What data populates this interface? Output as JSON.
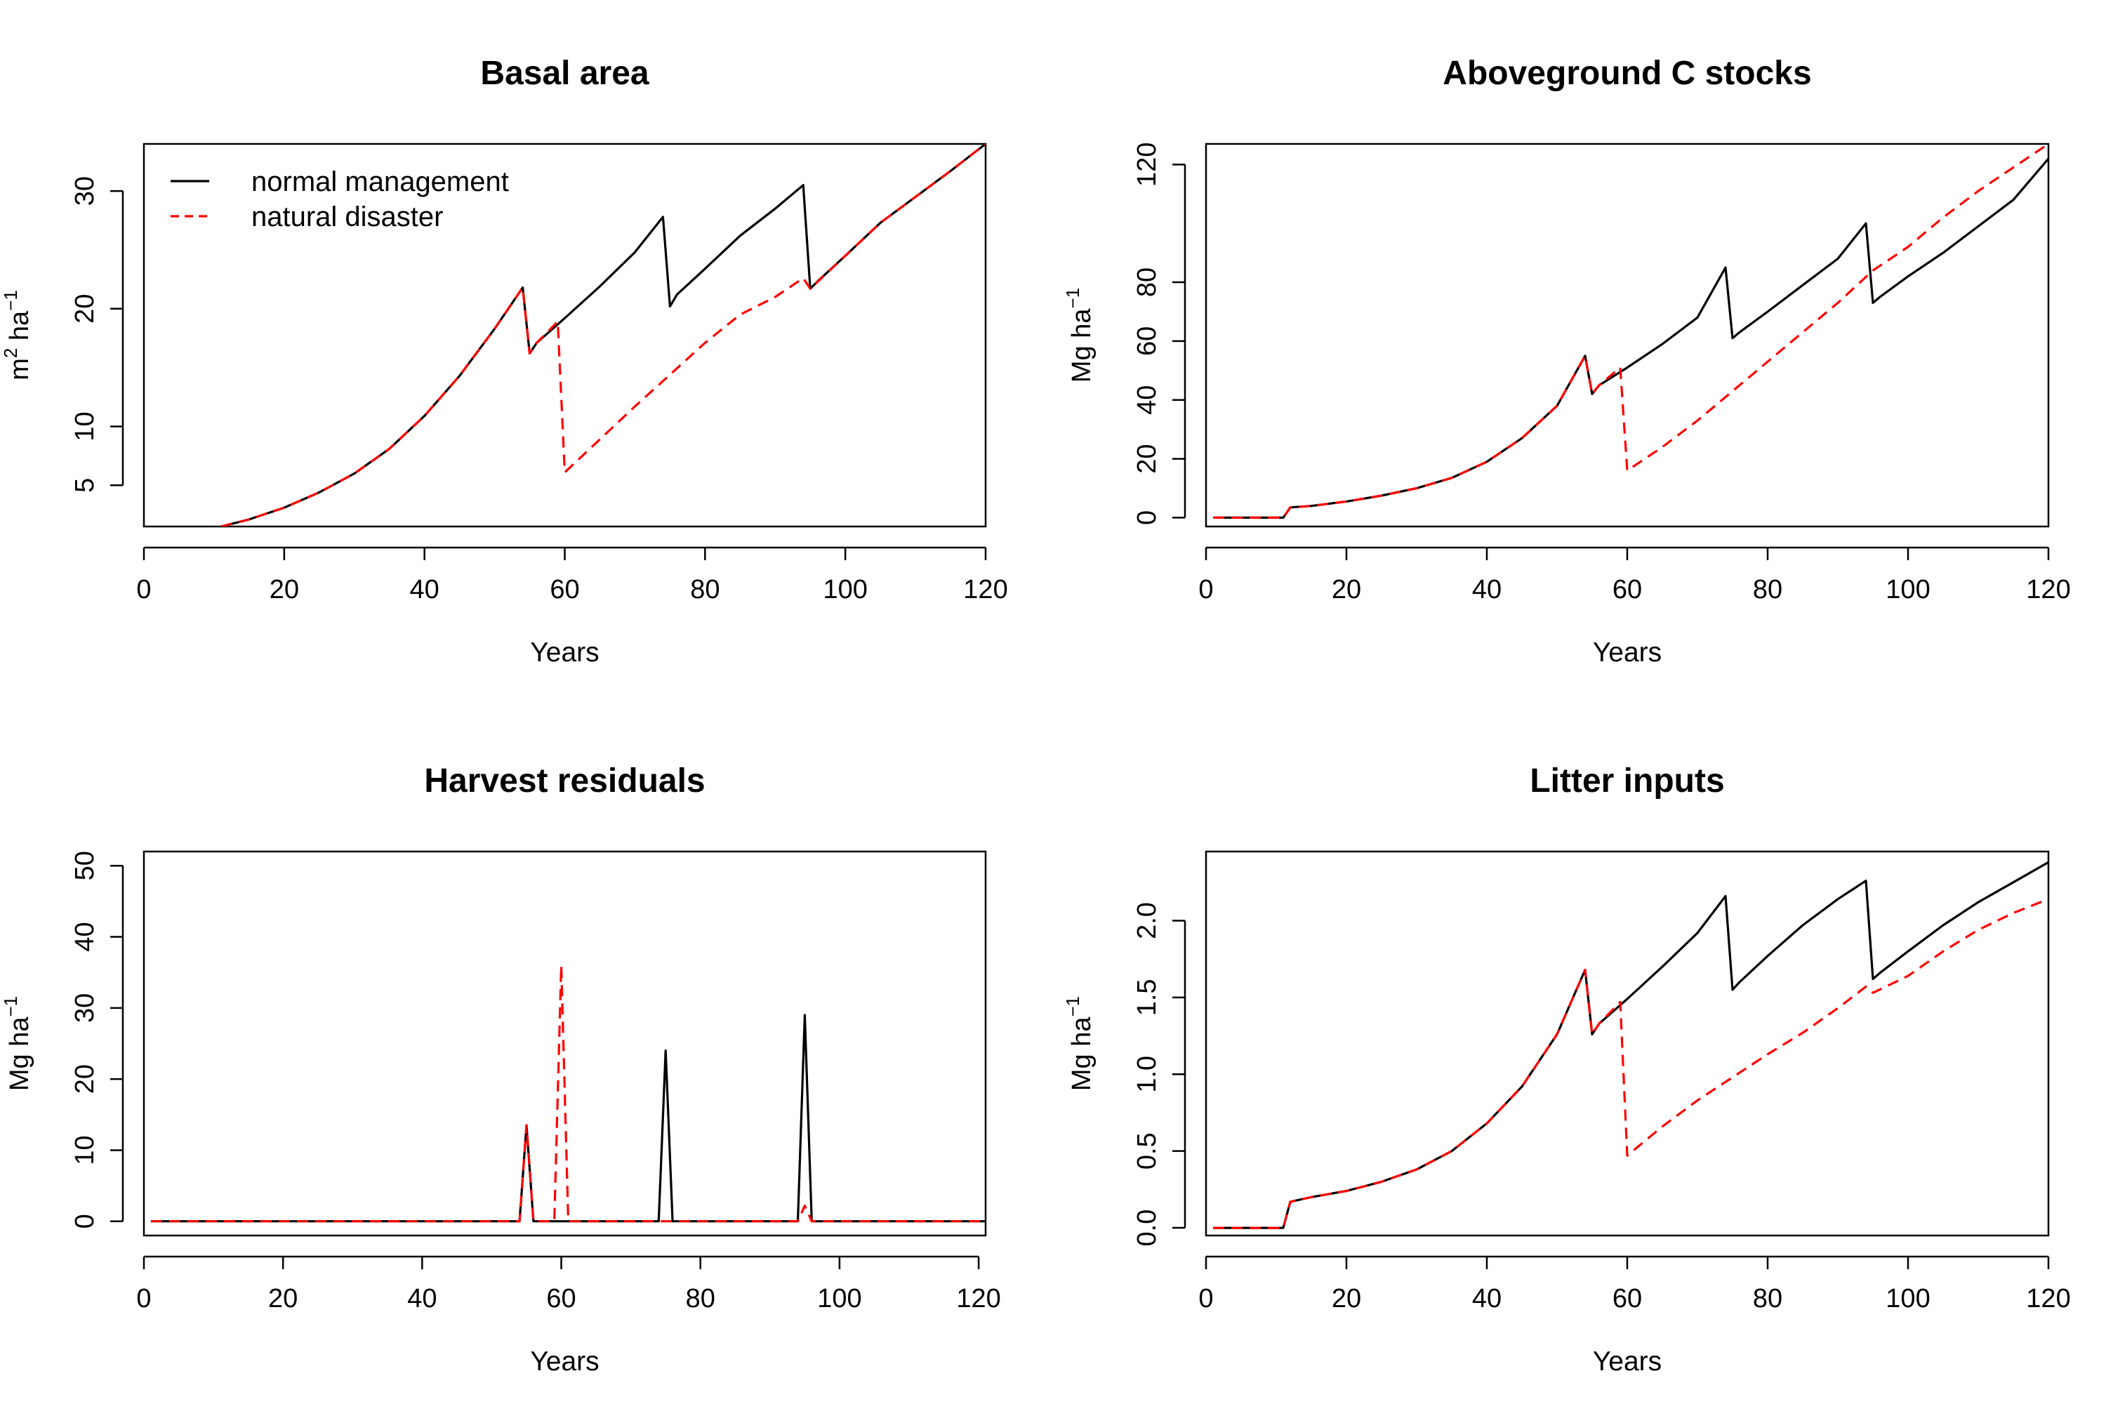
{
  "legend": {
    "entries": [
      "normal management",
      "natural disaster"
    ]
  },
  "series_style": {
    "normal management": {
      "color": "#000000",
      "dash": "solid"
    },
    "natural disaster": {
      "color": "#ff0000",
      "dash": "dashed"
    }
  },
  "chart_data": [
    {
      "type": "line",
      "title": "Basal area",
      "xlabel": "Years",
      "ylabel_main": "m",
      "ylabel_parts": [
        "2",
        " ha",
        "−1"
      ],
      "xlim": [
        0,
        120
      ],
      "ylim": [
        1.5,
        34
      ],
      "xticks": [
        0,
        20,
        40,
        60,
        80,
        100,
        120
      ],
      "yticks": [
        5,
        10,
        20,
        30
      ],
      "grid": false,
      "legend_position": "top-left",
      "series": [
        {
          "name": "normal management",
          "points": [
            [
              11,
              1.5
            ],
            [
              15,
              2.1
            ],
            [
              20,
              3.1
            ],
            [
              25,
              4.4
            ],
            [
              30,
              6.0
            ],
            [
              35,
              8.1
            ],
            [
              40,
              10.9
            ],
            [
              45,
              14.3
            ],
            [
              50,
              18.3
            ],
            [
              54,
              21.8
            ],
            [
              55,
              16.2
            ],
            [
              56,
              17.1
            ],
            [
              60,
              19.2
            ],
            [
              65,
              21.9
            ],
            [
              70,
              24.8
            ],
            [
              74,
              27.8
            ],
            [
              75,
              20.2
            ],
            [
              76,
              21.2
            ],
            [
              80,
              23.4
            ],
            [
              85,
              26.2
            ],
            [
              90,
              28.5
            ],
            [
              94,
              30.5
            ],
            [
              95,
              21.7
            ],
            [
              96,
              22.3
            ],
            [
              100,
              24.5
            ],
            [
              105,
              27.3
            ],
            [
              110,
              29.5
            ],
            [
              115,
              31.7
            ],
            [
              120,
              34.0
            ]
          ]
        },
        {
          "name": "natural disaster",
          "points": [
            [
              11,
              1.5
            ],
            [
              15,
              2.1
            ],
            [
              20,
              3.1
            ],
            [
              25,
              4.4
            ],
            [
              30,
              6.0
            ],
            [
              35,
              8.1
            ],
            [
              40,
              10.9
            ],
            [
              45,
              14.3
            ],
            [
              50,
              18.3
            ],
            [
              54,
              21.8
            ],
            [
              55,
              16.2
            ],
            [
              56,
              17.1
            ],
            [
              59,
              18.9
            ],
            [
              60,
              6.1
            ],
            [
              65,
              8.9
            ],
            [
              70,
              11.7
            ],
            [
              75,
              14.4
            ],
            [
              80,
              17.1
            ],
            [
              85,
              19.5
            ],
            [
              90,
              21.0
            ],
            [
              94,
              22.6
            ],
            [
              95,
              21.7
            ],
            [
              100,
              24.5
            ],
            [
              105,
              27.3
            ],
            [
              110,
              29.5
            ],
            [
              115,
              31.7
            ],
            [
              120,
              34.0
            ]
          ]
        }
      ]
    },
    {
      "type": "line",
      "title": "Aboveground C stocks",
      "xlabel": "Years",
      "ylabel_main": "Mg ha",
      "ylabel_parts": [
        "−1"
      ],
      "xlim": [
        0,
        120
      ],
      "ylim": [
        -3,
        127
      ],
      "xticks": [
        0,
        20,
        40,
        60,
        80,
        100,
        120
      ],
      "yticks": [
        0,
        20,
        40,
        60,
        80,
        120
      ],
      "grid": false,
      "series": [
        {
          "name": "normal management",
          "points": [
            [
              1,
              0
            ],
            [
              11,
              0
            ],
            [
              12,
              3.5
            ],
            [
              15,
              4.0
            ],
            [
              20,
              5.5
            ],
            [
              25,
              7.5
            ],
            [
              30,
              10
            ],
            [
              35,
              13.5
            ],
            [
              40,
              19
            ],
            [
              45,
              27
            ],
            [
              50,
              38
            ],
            [
              54,
              55
            ],
            [
              55,
              42
            ],
            [
              56,
              45
            ],
            [
              60,
              51
            ],
            [
              65,
              59
            ],
            [
              70,
              68
            ],
            [
              74,
              85
            ],
            [
              75,
              61
            ],
            [
              76,
              63
            ],
            [
              80,
              70
            ],
            [
              85,
              79
            ],
            [
              90,
              88
            ],
            [
              94,
              100
            ],
            [
              95,
              73
            ],
            [
              96,
              75
            ],
            [
              100,
              82
            ],
            [
              105,
              90
            ],
            [
              110,
              99
            ],
            [
              115,
              108
            ],
            [
              120,
              122
            ]
          ]
        },
        {
          "name": "natural disaster",
          "points": [
            [
              1,
              0
            ],
            [
              11,
              0
            ],
            [
              12,
              3.5
            ],
            [
              15,
              4.0
            ],
            [
              20,
              5.5
            ],
            [
              25,
              7.5
            ],
            [
              30,
              10
            ],
            [
              35,
              13.5
            ],
            [
              40,
              19
            ],
            [
              45,
              27
            ],
            [
              50,
              38
            ],
            [
              54,
              55
            ],
            [
              55,
              42
            ],
            [
              56,
              45
            ],
            [
              59,
              51
            ],
            [
              60,
              16
            ],
            [
              65,
              24
            ],
            [
              70,
              33
            ],
            [
              75,
              43
            ],
            [
              80,
              53
            ],
            [
              85,
              63
            ],
            [
              90,
              73
            ],
            [
              95,
              84
            ],
            [
              100,
              92
            ],
            [
              105,
              102
            ],
            [
              110,
              111
            ],
            [
              115,
              119
            ],
            [
              120,
              127
            ]
          ]
        }
      ]
    },
    {
      "type": "line",
      "title": "Harvest residuals",
      "xlabel": "Years",
      "ylabel_main": "Mg ha",
      "ylabel_parts": [
        "−1"
      ],
      "xlim": [
        0,
        121
      ],
      "ylim": [
        -2,
        52
      ],
      "xticks": [
        0,
        20,
        40,
        60,
        80,
        100,
        120
      ],
      "yticks": [
        0,
        10,
        20,
        30,
        40,
        50
      ],
      "grid": false,
      "series": [
        {
          "name": "normal management",
          "points": [
            [
              1,
              0
            ],
            [
              54,
              0
            ],
            [
              55,
              13.5
            ],
            [
              56,
              0
            ],
            [
              74,
              0
            ],
            [
              75,
              24
            ],
            [
              76,
              0
            ],
            [
              94,
              0
            ],
            [
              95,
              29
            ],
            [
              96,
              0
            ],
            [
              121,
              0
            ]
          ]
        },
        {
          "name": "natural disaster",
          "points": [
            [
              1,
              0
            ],
            [
              54,
              0
            ],
            [
              55,
              13.5
            ],
            [
              56,
              0
            ],
            [
              59,
              0
            ],
            [
              60,
              36
            ],
            [
              61,
              0
            ],
            [
              94,
              0
            ],
            [
              95,
              2.2
            ],
            [
              96,
              0
            ],
            [
              121,
              0
            ]
          ]
        }
      ]
    },
    {
      "type": "line",
      "title": "Litter inputs",
      "xlabel": "Years",
      "ylabel_main": "Mg ha",
      "ylabel_parts": [
        "−1"
      ],
      "xlim": [
        0,
        120
      ],
      "ylim": [
        -0.05,
        2.45
      ],
      "xticks": [
        0,
        20,
        40,
        60,
        80,
        100,
        120
      ],
      "yticks": [
        0.0,
        0.5,
        1.0,
        1.5,
        2.0
      ],
      "ytick_labels": [
        "0.0",
        "0.5",
        "1.0",
        "1.5",
        "2.0"
      ],
      "grid": false,
      "series": [
        {
          "name": "normal management",
          "points": [
            [
              1,
              0
            ],
            [
              11,
              0
            ],
            [
              12,
              0.17
            ],
            [
              15,
              0.2
            ],
            [
              20,
              0.24
            ],
            [
              25,
              0.3
            ],
            [
              30,
              0.38
            ],
            [
              35,
              0.5
            ],
            [
              40,
              0.68
            ],
            [
              45,
              0.92
            ],
            [
              50,
              1.26
            ],
            [
              54,
              1.68
            ],
            [
              55,
              1.26
            ],
            [
              56,
              1.33
            ],
            [
              60,
              1.49
            ],
            [
              65,
              1.7
            ],
            [
              70,
              1.92
            ],
            [
              74,
              2.16
            ],
            [
              75,
              1.55
            ],
            [
              76,
              1.6
            ],
            [
              80,
              1.77
            ],
            [
              85,
              1.97
            ],
            [
              90,
              2.14
            ],
            [
              94,
              2.26
            ],
            [
              95,
              1.62
            ],
            [
              96,
              1.66
            ],
            [
              100,
              1.8
            ],
            [
              105,
              1.97
            ],
            [
              110,
              2.12
            ],
            [
              115,
              2.25
            ],
            [
              120,
              2.38
            ]
          ]
        },
        {
          "name": "natural disaster",
          "points": [
            [
              1,
              0
            ],
            [
              11,
              0
            ],
            [
              12,
              0.17
            ],
            [
              15,
              0.2
            ],
            [
              20,
              0.24
            ],
            [
              25,
              0.3
            ],
            [
              30,
              0.38
            ],
            [
              35,
              0.5
            ],
            [
              40,
              0.68
            ],
            [
              45,
              0.92
            ],
            [
              50,
              1.26
            ],
            [
              54,
              1.68
            ],
            [
              55,
              1.26
            ],
            [
              56,
              1.33
            ],
            [
              59,
              1.47
            ],
            [
              60,
              0.47
            ],
            [
              65,
              0.66
            ],
            [
              70,
              0.83
            ],
            [
              75,
              0.98
            ],
            [
              80,
              1.13
            ],
            [
              85,
              1.27
            ],
            [
              90,
              1.43
            ],
            [
              94,
              1.57
            ],
            [
              95,
              1.53
            ],
            [
              100,
              1.64
            ],
            [
              105,
              1.8
            ],
            [
              110,
              1.94
            ],
            [
              115,
              2.05
            ],
            [
              120,
              2.14
            ]
          ]
        }
      ]
    }
  ]
}
